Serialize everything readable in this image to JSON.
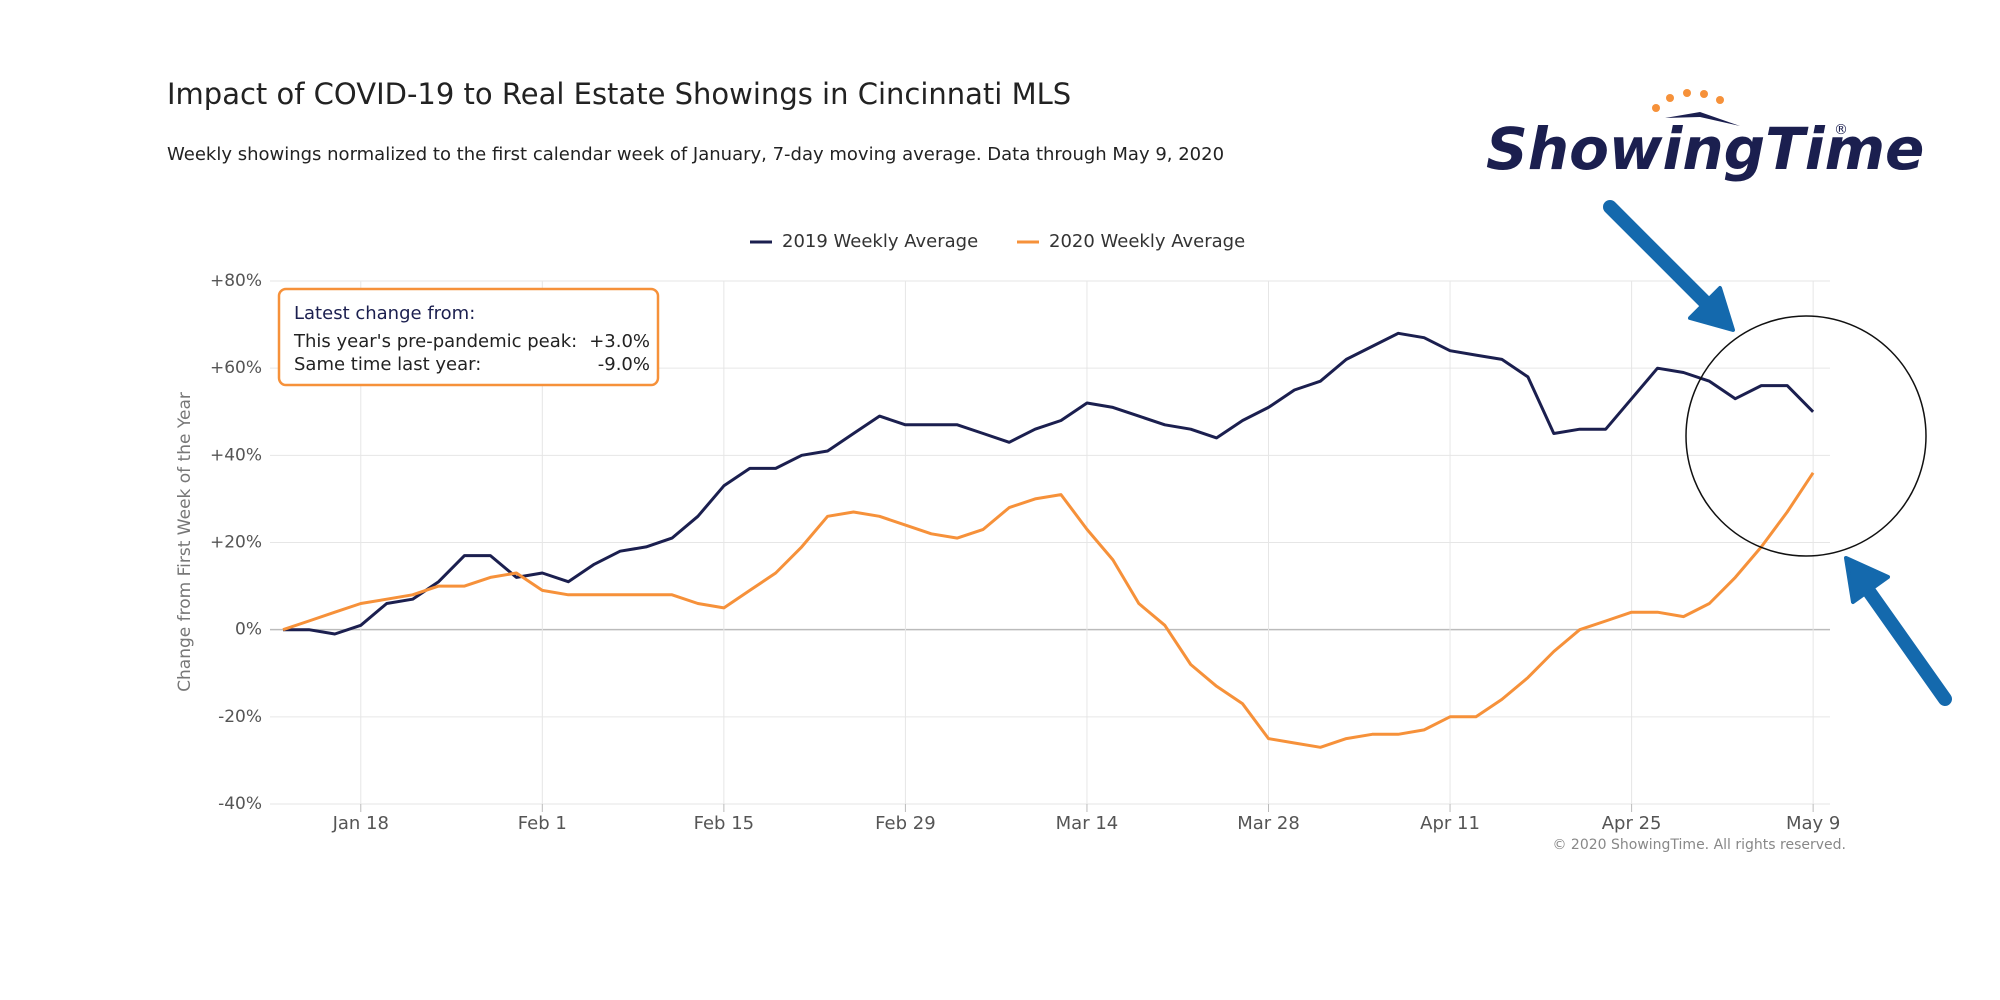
{
  "chart_data": {
    "type": "line",
    "title": "Impact of COVID-19 to Real Estate Showings in Cincinnati MLS",
    "subtitle": "Weekly showings normalized to the first calendar week of January, 7-day moving average. Data through May 9, 2020",
    "y_label": "Change from First Week of the Year",
    "credit": "© 2020 ShowingTime. All rights reserved.",
    "logo": {
      "text": "ShowingTime",
      "mark": "®"
    },
    "annotation": {
      "title": "Latest change from:",
      "rows": [
        {
          "label": "This year's pre-pandemic peak:",
          "value": "+3.0%"
        },
        {
          "label": "Same time last year:",
          "value": "-9.0%"
        }
      ]
    },
    "x": [
      12,
      14,
      16,
      18,
      20,
      22,
      24,
      26,
      28,
      30,
      32,
      34,
      36,
      38,
      40,
      42,
      44,
      46,
      48,
      50,
      52,
      54,
      56,
      58,
      60,
      62,
      64,
      66,
      68,
      70,
      72,
      74,
      76,
      78,
      80,
      82,
      84,
      86,
      88,
      90,
      92,
      94,
      96,
      98,
      100,
      102,
      104,
      106,
      108,
      110,
      112,
      114,
      116,
      118,
      120,
      122,
      124,
      126,
      128,
      130
    ],
    "series": [
      {
        "name": "2019 Weekly Average",
        "color": "#1b1f4f",
        "values": [
          0,
          0,
          -1,
          1,
          6,
          7,
          11,
          17,
          17,
          12,
          13,
          11,
          15,
          18,
          19,
          21,
          26,
          33,
          37,
          37,
          40,
          41,
          45,
          49,
          47,
          47,
          47,
          45,
          43,
          46,
          48,
          52,
          51,
          49,
          47,
          46,
          44,
          48,
          51,
          55,
          57,
          62,
          65,
          68,
          67,
          64,
          63,
          62,
          58,
          45,
          46,
          46,
          53,
          60,
          59,
          57,
          53,
          56,
          56,
          50
        ]
      },
      {
        "name": "2020 Weekly Average",
        "color": "#f6913a",
        "values": [
          0,
          2,
          4,
          6,
          7,
          8,
          10,
          10,
          12,
          13,
          9,
          8,
          8,
          8,
          8,
          8,
          6,
          5,
          9,
          13,
          19,
          26,
          27,
          26,
          24,
          22,
          21,
          23,
          28,
          30,
          31,
          23,
          16,
          6,
          1,
          -8,
          -13,
          -17,
          -25,
          -26,
          -27,
          -25,
          -24,
          -24,
          -23,
          -20,
          -20,
          -16,
          -11,
          -5,
          0,
          2,
          4,
          4,
          3,
          6,
          12,
          19,
          27,
          36
        ]
      }
    ],
    "xlim": [
      11,
      131.3
    ],
    "xticks": [
      {
        "value": 18,
        "label": "Jan 18"
      },
      {
        "value": 32,
        "label": "Feb 1"
      },
      {
        "value": 46,
        "label": "Feb 15"
      },
      {
        "value": 60,
        "label": "Feb 29"
      },
      {
        "value": 74,
        "label": "Mar 14"
      },
      {
        "value": 88,
        "label": "Mar 28"
      },
      {
        "value": 102,
        "label": "Apr 11"
      },
      {
        "value": 116,
        "label": "Apr 25"
      },
      {
        "value": 130,
        "label": "May 9"
      }
    ],
    "ylim": [
      -40,
      80
    ],
    "yticks": [
      {
        "value": -40,
        "label": "-40%"
      },
      {
        "value": -20,
        "label": "-20%"
      },
      {
        "value": 0,
        "label": "0%"
      },
      {
        "value": 20,
        "label": "+20%"
      },
      {
        "value": 40,
        "label": "+40%"
      },
      {
        "value": 60,
        "label": "+60%"
      },
      {
        "value": 80,
        "label": "+80%"
      }
    ],
    "grid": true,
    "legend": "top"
  }
}
